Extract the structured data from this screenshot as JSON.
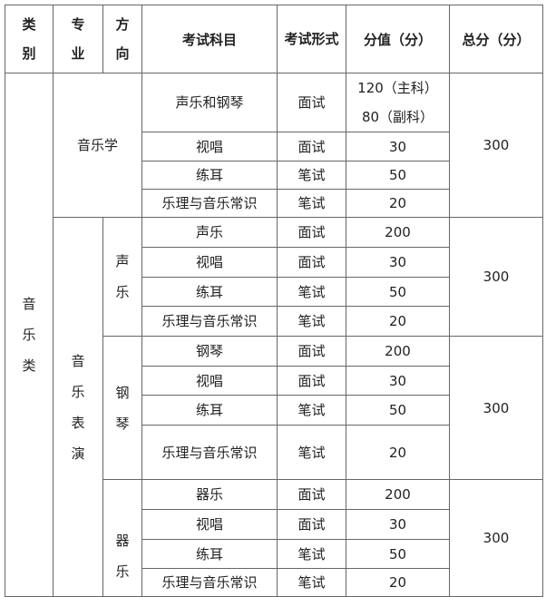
{
  "header": {
    "category": "类别",
    "major": "专业",
    "direction": "方向",
    "subject": "考试科目",
    "form": "考试形式",
    "score": "分值（分）",
    "total": "总分（分）"
  },
  "category": "音乐类",
  "musicology": {
    "major": "音乐学",
    "total": "300",
    "rows": [
      {
        "subject": "声乐和钢琴",
        "form": "面试",
        "score_main": "120（主科）",
        "score_minor": "80（副科）"
      },
      {
        "subject": "视唱",
        "form": "面试",
        "score": "30"
      },
      {
        "subject": "练耳",
        "form": "笔试",
        "score": "50"
      },
      {
        "subject": "乐理与音乐常识",
        "form": "笔试",
        "score": "20"
      }
    ]
  },
  "performance": {
    "major": "音乐表演",
    "directions": [
      {
        "name": "声乐",
        "total": "300",
        "rows": [
          {
            "subject": "声乐",
            "form": "面试",
            "score": "200"
          },
          {
            "subject": "视唱",
            "form": "面试",
            "score": "30"
          },
          {
            "subject": "练耳",
            "form": "笔试",
            "score": "50"
          },
          {
            "subject": "乐理与音乐常识",
            "form": "笔试",
            "score": "20"
          }
        ]
      },
      {
        "name": "钢琴",
        "total": "300",
        "rows": [
          {
            "subject": "钢琴",
            "form": "面试",
            "score": "200"
          },
          {
            "subject": "视唱",
            "form": "面试",
            "score": "30"
          },
          {
            "subject": "练耳",
            "form": "笔试",
            "score": "50"
          },
          {
            "subject": "乐理与音乐常识",
            "form": "笔试",
            "score": "20"
          }
        ]
      },
      {
        "name": "器乐",
        "total": "300",
        "rows": [
          {
            "subject": "器乐",
            "form": "面试",
            "score": "200"
          },
          {
            "subject": "视唱",
            "form": "面试",
            "score": "30"
          },
          {
            "subject": "练耳",
            "form": "笔试",
            "score": "50"
          },
          {
            "subject": "乐理与音乐常识",
            "form": "笔试",
            "score": "20"
          }
        ]
      }
    ]
  }
}
